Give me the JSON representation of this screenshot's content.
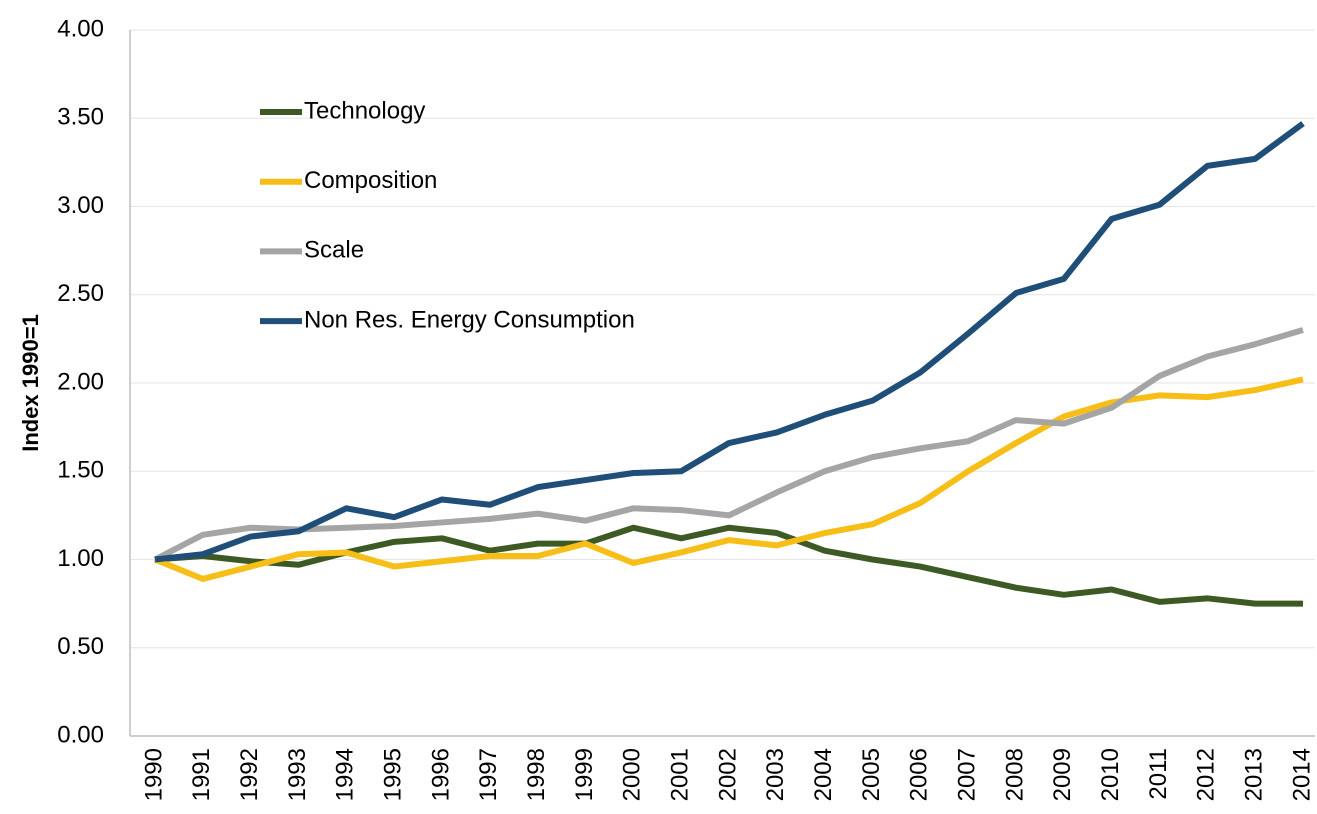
{
  "chart_data": {
    "type": "line",
    "y_label": "Index 1990=1",
    "categories": [
      "1990",
      "1991",
      "1992",
      "1993",
      "1994",
      "1995",
      "1996",
      "1997",
      "1998",
      "1999",
      "2000",
      "2001",
      "2002",
      "2003",
      "2004",
      "2005",
      "2006",
      "2007",
      "2008",
      "2009",
      "2010",
      "2011",
      "2012",
      "2013",
      "2014"
    ],
    "series": [
      {
        "name": "Technology",
        "color": "#3d5a25",
        "values": [
          1.0,
          1.02,
          0.99,
          0.97,
          1.04,
          1.1,
          1.12,
          1.05,
          1.09,
          1.09,
          1.18,
          1.12,
          1.18,
          1.15,
          1.05,
          1.0,
          0.96,
          0.9,
          0.84,
          0.8,
          0.83,
          0.76,
          0.78,
          0.75,
          0.75
        ]
      },
      {
        "name": "Composition",
        "color": "#f7be17",
        "values": [
          1.0,
          0.89,
          0.96,
          1.03,
          1.04,
          0.96,
          0.99,
          1.02,
          1.02,
          1.09,
          0.98,
          1.04,
          1.11,
          1.08,
          1.15,
          1.2,
          1.32,
          1.5,
          1.66,
          1.81,
          1.89,
          1.93,
          1.92,
          1.96,
          2.02
        ]
      },
      {
        "name": "Scale",
        "color": "#a5a5a5",
        "values": [
          1.0,
          1.14,
          1.18,
          1.17,
          1.18,
          1.19,
          1.21,
          1.23,
          1.26,
          1.22,
          1.29,
          1.28,
          1.25,
          1.38,
          1.5,
          1.58,
          1.63,
          1.67,
          1.79,
          1.77,
          1.86,
          2.04,
          2.15,
          2.22,
          2.3
        ]
      },
      {
        "name": "Non Res. Energy Consumption",
        "color": "#1f4e79",
        "values": [
          1.0,
          1.03,
          1.13,
          1.16,
          1.29,
          1.24,
          1.34,
          1.31,
          1.41,
          1.45,
          1.49,
          1.5,
          1.66,
          1.72,
          1.82,
          1.9,
          2.06,
          2.28,
          2.51,
          2.59,
          2.93,
          3.01,
          3.23,
          3.27,
          3.47
        ]
      }
    ],
    "ylim": [
      0,
      4
    ],
    "yticks": [
      {
        "value": 0,
        "label": "0.00"
      },
      {
        "value": 0.5,
        "label": "0.50"
      },
      {
        "value": 1,
        "label": "1.00"
      },
      {
        "value": 1.5,
        "label": "1.50"
      },
      {
        "value": 2,
        "label": "2.00"
      },
      {
        "value": 2.5,
        "label": "2.50"
      },
      {
        "value": 3,
        "label": "3.00"
      },
      {
        "value": 3.5,
        "label": "3.50"
      },
      {
        "value": 4,
        "label": "4.00"
      }
    ],
    "grid": true,
    "legend": "upper-left"
  }
}
